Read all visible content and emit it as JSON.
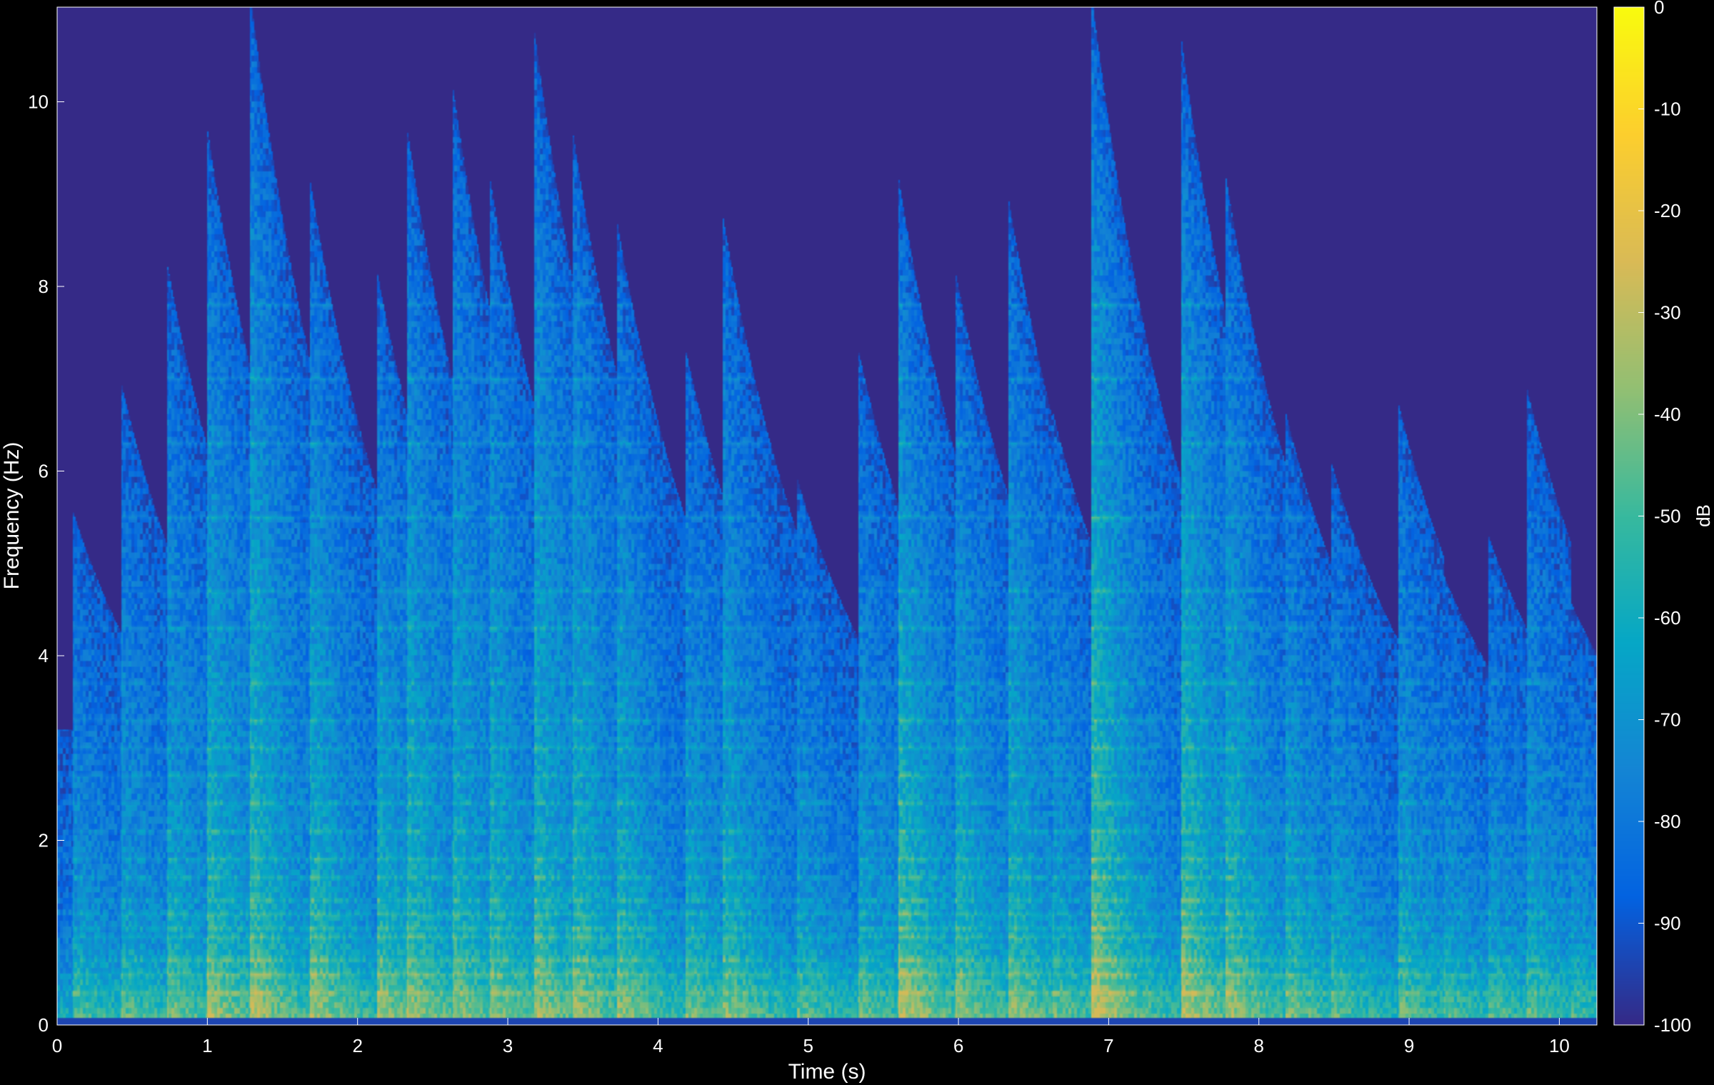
{
  "chart_data": {
    "type": "heatmap",
    "title": "",
    "xlabel": "Time (s)",
    "ylabel": "Frequency (Hz)",
    "xlim": [
      0,
      10.25
    ],
    "ylim": [
      0,
      11.025
    ],
    "x_ticks": [
      0,
      1,
      2,
      3,
      4,
      5,
      6,
      7,
      8,
      9,
      10
    ],
    "y_ticks": [
      0,
      2,
      4,
      6,
      8,
      10
    ],
    "colorbar": {
      "label": "dB",
      "range": [
        -100,
        0
      ],
      "ticks": [
        0,
        -10,
        -20,
        -30,
        -40,
        -50,
        -60,
        -70,
        -80,
        -90,
        -100
      ],
      "colormap": "parula",
      "colors": [
        "#352a87",
        "#0363e1",
        "#1485d4",
        "#06a7c6",
        "#38b99e",
        "#92bf73",
        "#d9ba56",
        "#fcce2e",
        "#f9fb0e"
      ]
    },
    "background_db": -100,
    "onsets": [
      {
        "t": 0.12,
        "top": 5.5,
        "strength": 0.45
      },
      {
        "t": 0.45,
        "top": 6.8,
        "strength": 0.5
      },
      {
        "t": 0.75,
        "top": 8.1,
        "strength": 0.6
      },
      {
        "t": 1.02,
        "top": 9.5,
        "strength": 0.75
      },
      {
        "t": 1.3,
        "top": 11.0,
        "strength": 0.8
      },
      {
        "t": 1.7,
        "top": 9.0,
        "strength": 0.75
      },
      {
        "t": 2.15,
        "top": 8.0,
        "strength": 0.7
      },
      {
        "t": 2.35,
        "top": 9.5,
        "strength": 0.75
      },
      {
        "t": 2.65,
        "top": 10.0,
        "strength": 0.7
      },
      {
        "t": 2.9,
        "top": 9.0,
        "strength": 0.7
      },
      {
        "t": 3.2,
        "top": 10.5,
        "strength": 0.75
      },
      {
        "t": 3.45,
        "top": 9.5,
        "strength": 0.75
      },
      {
        "t": 3.75,
        "top": 8.5,
        "strength": 0.7
      },
      {
        "t": 4.2,
        "top": 7.2,
        "strength": 0.6
      },
      {
        "t": 4.45,
        "top": 8.6,
        "strength": 0.65
      },
      {
        "t": 4.95,
        "top": 5.8,
        "strength": 0.5
      },
      {
        "t": 5.35,
        "top": 7.2,
        "strength": 0.55
      },
      {
        "t": 5.62,
        "top": 9.0,
        "strength": 0.85
      },
      {
        "t": 6.0,
        "top": 8.0,
        "strength": 0.7
      },
      {
        "t": 6.35,
        "top": 8.8,
        "strength": 0.7
      },
      {
        "t": 6.65,
        "top": 6.5,
        "strength": 0.55
      },
      {
        "t": 6.9,
        "top": 11.0,
        "strength": 0.95
      },
      {
        "t": 7.5,
        "top": 10.5,
        "strength": 0.85
      },
      {
        "t": 7.8,
        "top": 9.0,
        "strength": 0.75
      },
      {
        "t": 8.2,
        "top": 6.5,
        "strength": 0.6
      },
      {
        "t": 8.5,
        "top": 6.0,
        "strength": 0.5
      },
      {
        "t": 8.95,
        "top": 6.6,
        "strength": 0.55
      },
      {
        "t": 9.25,
        "top": 4.8,
        "strength": 0.45
      },
      {
        "t": 9.55,
        "top": 5.2,
        "strength": 0.45
      },
      {
        "t": 9.8,
        "top": 6.8,
        "strength": 0.5
      },
      {
        "t": 10.1,
        "top": 4.5,
        "strength": 0.4
      }
    ],
    "low_freq_band": {
      "range": [
        0,
        0.9
      ],
      "db": -45
    },
    "horizontal_bands_hz": [
      0.35,
      0.55,
      0.7,
      0.95,
      1.05,
      1.2,
      1.35,
      1.6,
      1.8,
      2.1,
      2.4,
      2.7,
      3.0,
      3.3,
      3.7,
      4.3,
      4.7,
      5.5,
      6.3,
      7.0,
      7.8
    ]
  }
}
